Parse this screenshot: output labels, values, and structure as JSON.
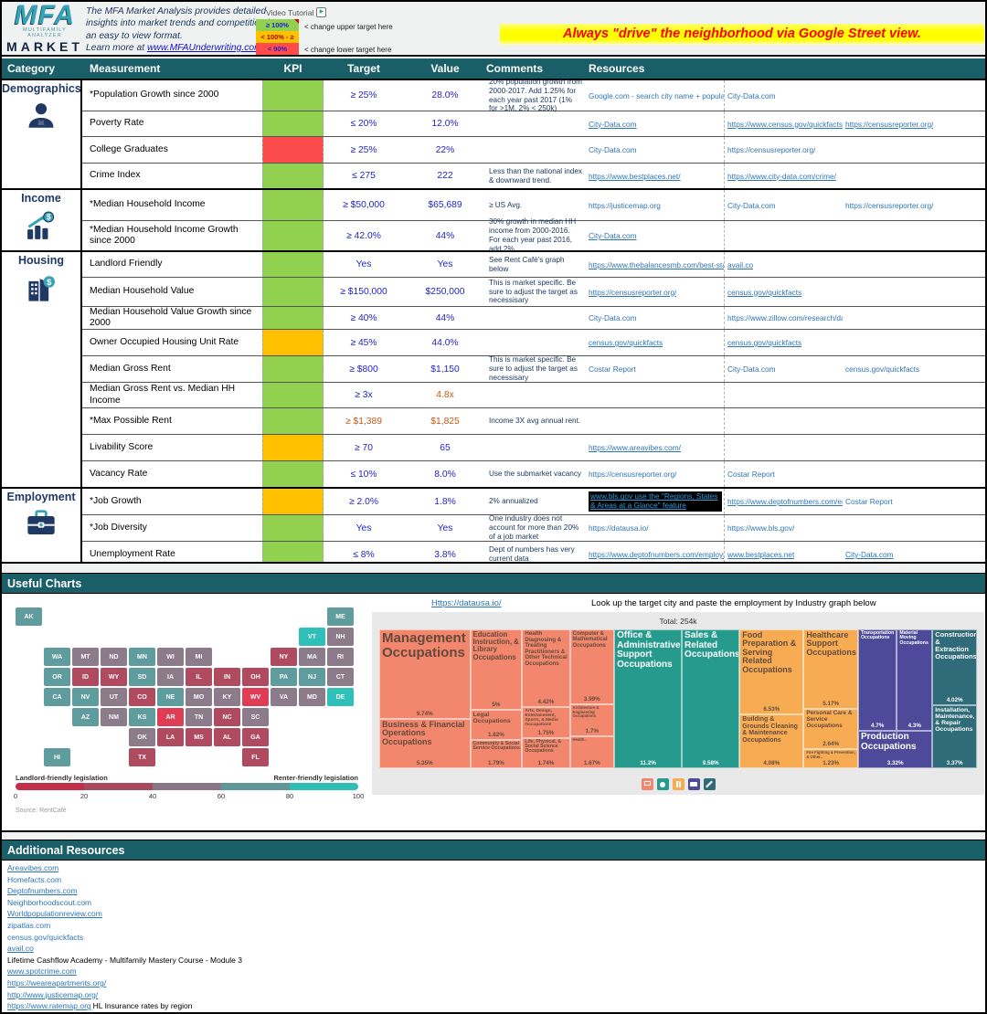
{
  "header": {
    "logo": {
      "acronym": "MFA",
      "tagline": "MULTIFAMILY ANALYZER",
      "market": "MARKET"
    },
    "description": "The MFA Market Analysis provides detailed insights into market trends and competition in an easy to view format.",
    "learn_more_prefix": "Learn more at ",
    "learn_more_link": "www.MFAUnderwriting.com",
    "video_tutorial": "Video Tutorial",
    "kpi_legend": [
      {
        "label": "≥ 100%",
        "color": "#92D050",
        "text_color": "#2222CC"
      },
      {
        "label": "< 100% - ≥  90%",
        "color": "#FFC000",
        "text_color": "#9C0006"
      },
      {
        "label": "< 90%",
        "color": "#FF4B4B",
        "text_color": "#2222CC"
      }
    ],
    "upper_note": "< change upper target here",
    "lower_note": "< change lower target here",
    "banner": "Always \"drive\" the neighborhood via Google Street view."
  },
  "table": {
    "columns": [
      "Category",
      "Measurement",
      "KPI",
      "Target",
      "Value",
      "Comments",
      "Resources"
    ],
    "kpi_colors": {
      "green": "#92D050",
      "orange": "#FFC000",
      "red": "#FB4B4B"
    },
    "groups": [
      {
        "category": "Demographics",
        "icon": "person-icon",
        "rows": [
          {
            "measurement": "*Population Growth since 2000",
            "kpi": "green",
            "target": "≥ 25%",
            "value": "28.0%",
            "comment": "20% population growth from 2000-2017.  Add 1.25% for each year past 2017 (1% for >1M, 2% < 250k)",
            "resources": [
              {
                "text": "Google.com - search city name + population",
                "col": 0
              },
              {
                "text": "City-Data.com",
                "col": 1
              }
            ]
          },
          {
            "measurement": "Poverty Rate",
            "kpi": "green",
            "target": "≤ 20%",
            "value": "12.0%",
            "comment": "",
            "resources": [
              {
                "text": "City-Data.com",
                "col": 0,
                "underline": true
              },
              {
                "text": "https://www.census.gov/quickfacts",
                "col": 1,
                "underline": true
              },
              {
                "text": "https://censusreporter.org/",
                "col": 2,
                "underline": true
              }
            ]
          },
          {
            "measurement": "College Graduates",
            "kpi": "red",
            "target": "≥ 25%",
            "value": "22%",
            "comment": "",
            "resources": [
              {
                "text": "City-Data.com",
                "col": 0
              },
              {
                "text": "https://censusreporter.org/",
                "col": 1
              }
            ]
          },
          {
            "measurement": "Crime Index",
            "kpi": "green",
            "target": "≤ 275",
            "value": "222",
            "comment": "Less than the national index & downward trend.",
            "resources": [
              {
                "text": "https://www.bestplaces.net/",
                "col": 0,
                "underline": true
              },
              {
                "text": "https://www.city-data.com/crime/",
                "col": 1,
                "underline": true
              }
            ]
          }
        ]
      },
      {
        "category": "Income",
        "icon": "income-icon",
        "rows": [
          {
            "measurement": "*Median Household Income",
            "kpi": "green",
            "target": "≥ $50,000",
            "value": "$65,689",
            "comment": "≥ US Avg.",
            "resources": [
              {
                "text": "https://justicemap.org",
                "col": 0
              },
              {
                "text": "City-Data.com",
                "col": 1
              },
              {
                "text": "https://censusreporter.org/",
                "col": 2
              }
            ]
          },
          {
            "measurement": "*Median Household Income Growth since 2000",
            "kpi": "green",
            "target": "≥ 42.0%",
            "value": "44%",
            "comment": "30% growth in median HH income from 2000-2016. For each year past 2016, add 2%",
            "resources": [
              {
                "text": "City-Data.com",
                "col": 0,
                "underline": true
              }
            ]
          }
        ]
      },
      {
        "category": "Housing",
        "icon": "housing-icon",
        "rows": [
          {
            "measurement": "Landlord Friendly",
            "kpi": "green",
            "target": "Yes",
            "value": "Yes",
            "comment": "See Rent Café's graph below",
            "resources": [
              {
                "text": "https://www.thebalancesmb.com/best-states-for-landlords",
                "col": 0,
                "underline": true
              },
              {
                "text": "avail.co",
                "col": 1,
                "underline": true
              }
            ]
          },
          {
            "measurement": "Median Household Value",
            "kpi": "green",
            "target": "≥ $150,000",
            "value": "$250,000",
            "comment": "This is market specific.  Be sure to adjust the target as necessisary",
            "resources": [
              {
                "text": "https://censusreporter.org/",
                "col": 0,
                "underline": true
              },
              {
                "text": "census.gov/quickfacts",
                "col": 1,
                "underline": true
              }
            ]
          },
          {
            "measurement": "Median Household Value Growth since 2000",
            "kpi": "green",
            "target": "≥ 40%",
            "value": "44%",
            "comment": "",
            "resources": [
              {
                "text": "City-Data.com",
                "col": 0
              },
              {
                "text": "https://www.zillow.com/research/data/",
                "col": 1
              }
            ]
          },
          {
            "measurement": "Owner Occupied Housing Unit Rate",
            "kpi": "orange",
            "target": "≥ 45%",
            "value": "44.0%",
            "comment": "",
            "resources": [
              {
                "text": "census.gov/quickfacts",
                "col": 0,
                "underline": true
              },
              {
                "text": "census.gov/quickfacts",
                "col": 1,
                "underline": true
              }
            ]
          },
          {
            "measurement": "Median Gross Rent",
            "kpi": "green",
            "target": "≥ $800",
            "value": "$1,150",
            "comment": "This is market specific.  Be sure to adjust the target as necessisary",
            "resources": [
              {
                "text": "Costar Report",
                "col": 0
              },
              {
                "text": "City-Data.com",
                "col": 1
              },
              {
                "text": "census.gov/quickfacts",
                "col": 2
              }
            ]
          },
          {
            "measurement": "Median Gross Rent vs. Median HH Income",
            "kpi": "green",
            "target": "≥ 3x",
            "value": "4.8x",
            "value_color": "orange",
            "comment": "",
            "resources": []
          },
          {
            "measurement": "*Max Possible Rent",
            "kpi": "green",
            "target": "≥ $1,389",
            "target_color": "orange",
            "value": "$1,825",
            "value_color": "orange",
            "comment": "Income 3X avg annual rent.",
            "resources": []
          },
          {
            "measurement": "Livability Score",
            "kpi": "orange",
            "target": "≥ 70",
            "value": "65",
            "comment": "",
            "resources": [
              {
                "text": "https://www.areavibes.com/",
                "col": 0,
                "underline": true
              }
            ]
          },
          {
            "measurement": "Vacancy Rate",
            "kpi": "green",
            "target": "≤ 10%",
            "value": "8.0%",
            "comment": "Use the submarket vacancy",
            "resources": [
              {
                "text": "https://censusreporter.org/",
                "col": 0
              },
              {
                "text": "Costar Report",
                "col": 1
              }
            ]
          }
        ]
      },
      {
        "category": "Employment",
        "icon": "briefcase-icon",
        "rows": [
          {
            "measurement": "*Job Growth",
            "kpi": "orange",
            "target": "≥ 2.0%",
            "value": "1.8%",
            "comment": "2% annualized",
            "resources": [
              {
                "text": "www.bls.gov use the \"Regions, States & Areas at a Glance\" feature",
                "col": 0,
                "underline": true,
                "highlight": true
              },
              {
                "text": "https://www.deptofnumbers.com/employment",
                "col": 1,
                "underline": true
              },
              {
                "text": "Costar Report",
                "col": 2
              }
            ]
          },
          {
            "measurement": "*Job Diversity",
            "kpi": "green",
            "target": "Yes",
            "value": "Yes",
            "comment": "One industry does not account for more than 20% of a job market",
            "resources": [
              {
                "text": "https://datausa.io/",
                "col": 0
              },
              {
                "text": "https://www.bls.gov/",
                "col": 1
              }
            ]
          },
          {
            "measurement": "Unemployment Rate",
            "kpi": "green",
            "target": "≤ 8%",
            "value": "3.8%",
            "comment": "Dept of numbers has very current data",
            "resources": [
              {
                "text": "https://www.deptofnumbers.com/employment",
                "col": 0,
                "underline": true
              },
              {
                "text": "www.bestplaces.net",
                "col": 1,
                "underline": true
              },
              {
                "text": "City-Data.com",
                "col": 2,
                "underline": true
              }
            ]
          }
        ]
      }
    ]
  },
  "useful_charts": {
    "header": "Useful Charts",
    "datausa_link": "Https://datausa.io/",
    "note": "Look up the target city and paste the employment by Industry graph below",
    "map": {
      "legend_left": "Landlord-friendly legislation",
      "legend_right": "Renter-friendly legislation",
      "ticks": [
        "0",
        "20",
        "40",
        "60",
        "80",
        "100"
      ],
      "source": "Source: RentCafé",
      "levels": {
        "teal": "#5E9C9D",
        "gray": "#8B7B8B",
        "red": "#AF4A5F",
        "bright": "#DE3D55",
        "cyan": "#2FC0BA"
      },
      "states": [
        {
          "abbr": "WA",
          "level": "teal"
        },
        {
          "abbr": "OR",
          "level": "teal"
        },
        {
          "abbr": "CA",
          "level": "teal"
        },
        {
          "abbr": "NV",
          "level": "teal"
        },
        {
          "abbr": "AZ",
          "level": "teal"
        },
        {
          "abbr": "ID",
          "level": "red"
        },
        {
          "abbr": "MT",
          "level": "gray"
        },
        {
          "abbr": "WY",
          "level": "red"
        },
        {
          "abbr": "UT",
          "level": "gray"
        },
        {
          "abbr": "CO",
          "level": "red"
        },
        {
          "abbr": "NM",
          "level": "gray"
        },
        {
          "abbr": "ND",
          "level": "gray"
        },
        {
          "abbr": "SD",
          "level": "teal"
        },
        {
          "abbr": "NE",
          "level": "teal"
        },
        {
          "abbr": "KS",
          "level": "teal"
        },
        {
          "abbr": "OK",
          "level": "gray"
        },
        {
          "abbr": "TX",
          "level": "red"
        },
        {
          "abbr": "MN",
          "level": "teal"
        },
        {
          "abbr": "IA",
          "level": "gray"
        },
        {
          "abbr": "MO",
          "level": "gray"
        },
        {
          "abbr": "AR",
          "level": "bright"
        },
        {
          "abbr": "LA",
          "level": "red"
        },
        {
          "abbr": "WI",
          "level": "gray"
        },
        {
          "abbr": "IL",
          "level": "red"
        },
        {
          "abbr": "MI",
          "level": "gray"
        },
        {
          "abbr": "IN",
          "level": "red"
        },
        {
          "abbr": "OH",
          "level": "red"
        },
        {
          "abbr": "KY",
          "level": "gray"
        },
        {
          "abbr": "TN",
          "level": "gray"
        },
        {
          "abbr": "MS",
          "level": "red"
        },
        {
          "abbr": "AL",
          "level": "red"
        },
        {
          "abbr": "GA",
          "level": "red"
        },
        {
          "abbr": "FL",
          "level": "red"
        },
        {
          "abbr": "SC",
          "level": "gray"
        },
        {
          "abbr": "NC",
          "level": "red"
        },
        {
          "abbr": "VA",
          "level": "gray"
        },
        {
          "abbr": "WV",
          "level": "bright"
        },
        {
          "abbr": "PA",
          "level": "teal"
        },
        {
          "abbr": "NY",
          "level": "red"
        },
        {
          "abbr": "MD",
          "level": "gray"
        },
        {
          "abbr": "DE",
          "level": "cyan"
        },
        {
          "abbr": "NJ",
          "level": "teal"
        },
        {
          "abbr": "VT",
          "level": "cyan"
        },
        {
          "abbr": "NH",
          "level": "gray"
        },
        {
          "abbr": "MA",
          "level": "gray"
        },
        {
          "abbr": "CT",
          "level": "gray"
        },
        {
          "abbr": "RI",
          "level": "gray"
        },
        {
          "abbr": "ME",
          "level": "teal"
        },
        {
          "abbr": "AK",
          "level": "teal"
        },
        {
          "abbr": "HI",
          "level": "teal"
        }
      ]
    },
    "treemap": {
      "total": "Total: 254k",
      "palette": {
        "salmon": "#F2876D",
        "teal": "#279A8E",
        "orange": "#F7AC54",
        "indigo": "#4D4A99",
        "slate": "#2F6B79"
      },
      "cells": [
        {
          "name": "Management Occupations",
          "pct": "9.74%",
          "group": "salmon"
        },
        {
          "name": "Business & Financial Operations Occupations",
          "pct": "5.35%",
          "group": "salmon"
        },
        {
          "name": "Education Instruction, & Library Occupations",
          "pct": "5%",
          "group": "salmon"
        },
        {
          "name": "Legal Occupations",
          "pct": "1.82%",
          "group": "salmon"
        },
        {
          "name": "Community & Social Service Occupations",
          "pct": "1.79%",
          "group": "salmon"
        },
        {
          "name": "Health Diagnosing & Treating Practitioners & Other Technical Occupations",
          "pct": "4.42%",
          "group": "salmon"
        },
        {
          "name": "Arts, Design, Entertainment, Sports, & Media Occupations",
          "pct": "1.75%",
          "group": "salmon"
        },
        {
          "name": "Life, Physical, & Social Science Occupations",
          "pct": "1.74%",
          "group": "salmon"
        },
        {
          "name": "Computer & Mathematical Occupations",
          "pct": "3.99%",
          "group": "salmon"
        },
        {
          "name": "Architecture & Engineering Occupations",
          "pct": "1.7%",
          "group": "salmon"
        },
        {
          "name": "Health..",
          "pct": "1.67%",
          "group": "salmon"
        },
        {
          "name": "Office & Administrative Support Occupations",
          "pct": "11.2%",
          "group": "teal"
        },
        {
          "name": "Sales & Related Occupations",
          "pct": "9.58%",
          "group": "teal"
        },
        {
          "name": "Food Preparation & Serving Related Occupations",
          "pct": "6.53%",
          "group": "orange"
        },
        {
          "name": "Building & Grounds Cleaning & Maintenance Occupations",
          "pct": "4.08%",
          "group": "orange"
        },
        {
          "name": "Healthcare Support Occupations",
          "pct": "5.17%",
          "group": "orange"
        },
        {
          "name": "Personal Care & Service Occupations",
          "pct": "2.64%",
          "group": "orange"
        },
        {
          "name": "Fire Fighting & Prevention, & Other..",
          "pct": "1.23%",
          "group": "orange"
        },
        {
          "name": "Transportation Occupations",
          "pct": "4.7%",
          "group": "indigo"
        },
        {
          "name": "Material Moving Occupations",
          "pct": "4.3%",
          "group": "indigo"
        },
        {
          "name": "Production Occupations",
          "pct": "3.32%",
          "group": "indigo"
        },
        {
          "name": "Construction & Extraction Occupations",
          "pct": "4.02%",
          "group": "slate"
        },
        {
          "name": "Installation, Maintenance, & Repair Occupations",
          "pct": "3.37%",
          "group": "slate"
        }
      ],
      "legend_icons": [
        "monitor-icon",
        "gear-icon",
        "pause-icon",
        "truck-icon",
        "wrench-icon"
      ]
    }
  },
  "additional_resources": {
    "header": "Additional Resources",
    "items": [
      {
        "text": "Areavibes.com",
        "underline": true
      },
      {
        "text": "Homefacts.com",
        "underline": false
      },
      {
        "text": "Deptofnumbers.com",
        "underline": true
      },
      {
        "text": "Neighborhoodscout.com",
        "underline": false
      },
      {
        "text": "Worldpopulationreview.com",
        "underline": true
      },
      {
        "text": "zipatlas.com",
        "underline": false
      },
      {
        "text": "census.gov/quickfacts",
        "underline": false
      },
      {
        "text": "avail.co",
        "underline": true
      },
      {
        "text": "Lifetime Cashflow Academy - Multifamily Mastery Course - Module 3",
        "underline": false,
        "plain": true
      },
      {
        "text": "www.spotcrime.com",
        "underline": true
      },
      {
        "text": "https://weareapartments.org/",
        "underline": true
      },
      {
        "text": "http://www.justicemap.org/",
        "underline": true
      },
      {
        "text": "https://www.ratemap.org",
        "underline": true,
        "suffix": " HL Insurance rates by region"
      }
    ]
  }
}
